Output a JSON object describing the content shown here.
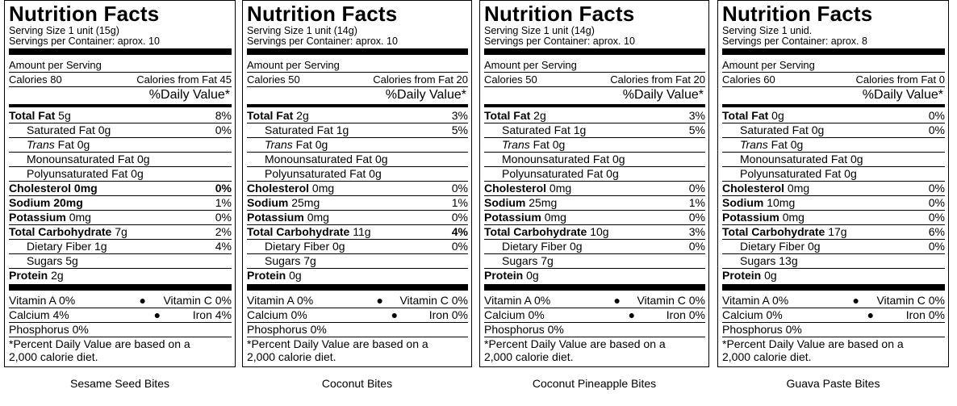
{
  "common": {
    "title": "Nutrition Facts",
    "amount_per_serving": "Amount per Serving",
    "daily_value": "%Daily Value*",
    "footnote_line1": "*Percent Daily Value are based on a",
    "footnote_line2": "2,000 calorie diet."
  },
  "labels": [
    {
      "serving_size": "Serving Size  1 unit (15g)",
      "servings_per_container": "Servings per Container:  aprox. 10",
      "calories": "Calories  80",
      "calories_from_fat": "Calories from Fat   45",
      "total_fat": {
        "label": "Total Fat",
        "value": " 5g",
        "dv": "8%"
      },
      "saturated_fat": {
        "label": "Saturated Fat  0g",
        "dv": "0%"
      },
      "trans_fat": {
        "label": "Trans",
        "value": " Fat  0g"
      },
      "mono_fat": "Monounsaturated Fat   0g",
      "poly_fat": "Polyunsaturated Fat   0g",
      "cholesterol": {
        "label": "Cholesterol",
        "value": "  0mg",
        "dv": "0%"
      },
      "sodium": {
        "label": "Sodium",
        "value": "  20mg",
        "dv": "1%"
      },
      "potassium": {
        "label": "Potassium",
        "value": "  0mg",
        "dv": "0%"
      },
      "carbs": {
        "label": "Total Carbohydrate",
        "value": "  7g",
        "dv": "2%"
      },
      "fiber": {
        "label": "Dietary Fiber  1g",
        "dv": "4%"
      },
      "sugars": "Sugars  5g",
      "protein": {
        "label": "Protein",
        "value": "  2g"
      },
      "vitamin_a": "Vitamin A   0%",
      "vitamin_c": "Vitamin C  0%",
      "calcium": "Calcium   4%",
      "iron": "Iron   4%",
      "phosphorus": "Phosphorus   0%",
      "caption": "Sesame Seed Bites"
    },
    {
      "serving_size": "Serving Size  1 unit (14g)",
      "servings_per_container": "Servings per Container:  aprox. 10",
      "calories": "Calories  50",
      "calories_from_fat": "Calories from Fat   20",
      "total_fat": {
        "label": "Total Fat",
        "value": " 2g",
        "dv": "3%"
      },
      "saturated_fat": {
        "label": "Saturated Fat  1g",
        "dv": "5%"
      },
      "trans_fat": {
        "label": "Trans",
        "value": " Fat  0g"
      },
      "mono_fat": "Monounsaturated Fat   0g",
      "poly_fat": "Polyunsaturated Fat   0g",
      "cholesterol": {
        "label": "Cholesterol",
        "value": "  0mg",
        "dv": "0%"
      },
      "sodium": {
        "label": "Sodium",
        "value": "  25mg",
        "dv": "1%"
      },
      "potassium": {
        "label": "Potassium",
        "value": "  0mg",
        "dv": "0%"
      },
      "carbs": {
        "label": "Total Carbohydrate",
        "value": " 11g",
        "dv": "4%"
      },
      "fiber": {
        "label": "Dietary Fiber   0g",
        "dv": "0%"
      },
      "sugars": "Sugars   7g",
      "protein": {
        "label": "Protein",
        "value": "  0g"
      },
      "vitamin_a": "Vitamin A   0%",
      "vitamin_c": "Vitamin C   0%",
      "calcium": "Calcium   0%",
      "iron": "Iron   0%",
      "phosphorus": "Phosphorus   0%",
      "caption": "Coconut Bites"
    },
    {
      "serving_size": "Serving Size  1 unit  (14g)",
      "servings_per_container": "Servings per Container:  aprox. 10",
      "calories": "Calories  50",
      "calories_from_fat": "Calories from Fat   20",
      "total_fat": {
        "label": "Total Fat",
        "value": " 2g",
        "dv": "3%"
      },
      "saturated_fat": {
        "label": "Saturated Fat  1g",
        "dv": "5%"
      },
      "trans_fat": {
        "label": "Trans",
        "value": " Fat  0g"
      },
      "mono_fat": "Monounsaturated Fat   0g",
      "poly_fat": "Polyunsaturated Fat   0g",
      "cholesterol": {
        "label": "Cholesterol",
        "value": "  0mg",
        "dv": "0%"
      },
      "sodium": {
        "label": "Sodium",
        "value": "  25mg",
        "dv": "1%"
      },
      "potassium": {
        "label": "Potassium",
        "value": "  0mg",
        "dv": "0%"
      },
      "carbs": {
        "label": "Total Carbohydrate",
        "value": "   10g",
        "dv": "3%"
      },
      "fiber": {
        "label": "Dietary Fiber   0g",
        "dv": "0%"
      },
      "sugars": "Sugars   7g",
      "protein": {
        "label": "Protein",
        "value": "  0g"
      },
      "vitamin_a": "Vitamin A   0%",
      "vitamin_c": "Vitamin C   0%",
      "calcium": "Calcium   0%",
      "iron": "Iron   0%",
      "phosphorus": "Phosphorus   0%",
      "caption": "Coconut Pineapple Bites"
    },
    {
      "serving_size": "Serving Size   1 unid.",
      "servings_per_container": "Servings per Container:  aprox. 8",
      "calories": "Calories  60",
      "calories_from_fat": "Calories from Fat   0",
      "total_fat": {
        "label": "Total Fat",
        "value": "  0g",
        "dv": "0%"
      },
      "saturated_fat": {
        "label": "Saturated Fat  0g",
        "dv": "0%"
      },
      "trans_fat": {
        "label": "Trans",
        "value": " Fat  0g"
      },
      "mono_fat": "Monounsaturated Fat   0g",
      "poly_fat": "Polyunsaturated Fat   0g",
      "cholesterol": {
        "label": "Cholesterol",
        "value": "  0mg",
        "dv": "0%"
      },
      "sodium": {
        "label": "Sodium",
        "value": "  10mg",
        "dv": "0%"
      },
      "potassium": {
        "label": "Potassium",
        "value": "  0mg",
        "dv": "0%"
      },
      "carbs": {
        "label": "Total Carbohydrate",
        "value": "   17g",
        "dv": "6%"
      },
      "fiber": {
        "label": "Dietary Fiber   0g",
        "dv": "0%"
      },
      "sugars": "Sugars   13g",
      "protein": {
        "label": "Protein",
        "value": "  0g"
      },
      "vitamin_a": "Vitamin A   0%",
      "vitamin_c": "Vitamin C   0%",
      "calcium": "Calcium   0%",
      "iron": "Iron   0%",
      "phosphorus": "Phosphorus   0%",
      "caption": "Guava Paste Bites"
    }
  ]
}
